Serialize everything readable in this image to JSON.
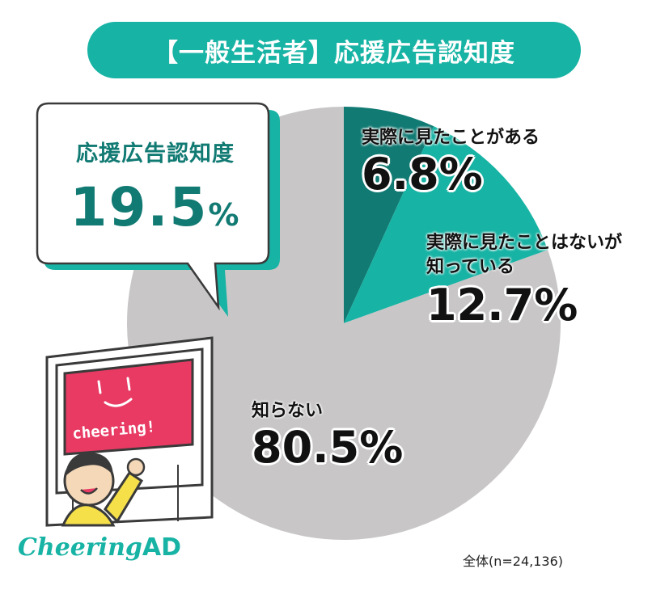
{
  "header": {
    "title": "【一般生活者】応援広告認知度"
  },
  "bubble": {
    "title": "応援広告認知度",
    "value": "19.5",
    "unit": "%"
  },
  "illustration": {
    "screen_text": "cheering!"
  },
  "footnote": "全体(n=24,136)",
  "logo": {
    "text": "Cheering",
    "suffix": "AD"
  },
  "colors": {
    "dark_teal": "#117a73",
    "teal": "#17b3a4",
    "gray": "#c8c6c7"
  },
  "chart_data": {
    "type": "pie",
    "title": "【一般生活者】応援広告認知度",
    "slices": [
      {
        "label": "実際に見たことがある",
        "label_lines": [
          "実際に見たことがある"
        ],
        "value": 6.8,
        "display": "6.8%",
        "color": "#117a73"
      },
      {
        "label": "実際に見たことはないが知っている",
        "label_lines": [
          "実際に見たことはないが",
          "知っている"
        ],
        "value": 12.7,
        "display": "12.7%",
        "color": "#17b3a4"
      },
      {
        "label": "知らない",
        "label_lines": [
          "知らない"
        ],
        "value": 80.5,
        "display": "80.5%",
        "color": "#c8c6c7"
      }
    ]
  }
}
